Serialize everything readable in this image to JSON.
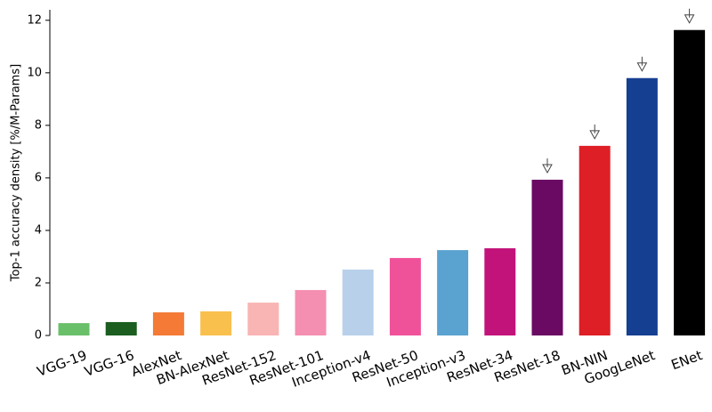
{
  "chart_data": {
    "type": "bar",
    "y_label": "Top-1 accuracy density [%/M-Params]",
    "categories": [
      "VGG-19",
      "VGG-16",
      "AlexNet",
      "BN-AlexNet",
      "ResNet-152",
      "ResNet-101",
      "Inception-v4",
      "ResNet-50",
      "Inception-v3",
      "ResNet-34",
      "ResNet-18",
      "BN-NIN",
      "GoogLeNet",
      "ENet"
    ],
    "values": [
      0.47,
      0.51,
      0.88,
      0.92,
      1.25,
      1.73,
      2.51,
      2.95,
      3.25,
      3.32,
      5.93,
      7.22,
      9.8,
      11.63
    ],
    "colors": [
      "#6abf69",
      "#1b5e20",
      "#f47a36",
      "#f9c04d",
      "#f9b4b4",
      "#f48fb1",
      "#b8d0ea",
      "#f0529a",
      "#5aa2d0",
      "#c2137a",
      "#6a0a63",
      "#de1f26",
      "#153f91",
      "#000000"
    ],
    "arrow_markers": [
      false,
      false,
      false,
      false,
      false,
      false,
      false,
      false,
      false,
      false,
      true,
      true,
      true,
      true
    ],
    "ylim": [
      0,
      12.4
    ],
    "yticks": [
      0,
      2,
      4,
      6,
      8,
      10,
      12
    ],
    "grid": false
  }
}
